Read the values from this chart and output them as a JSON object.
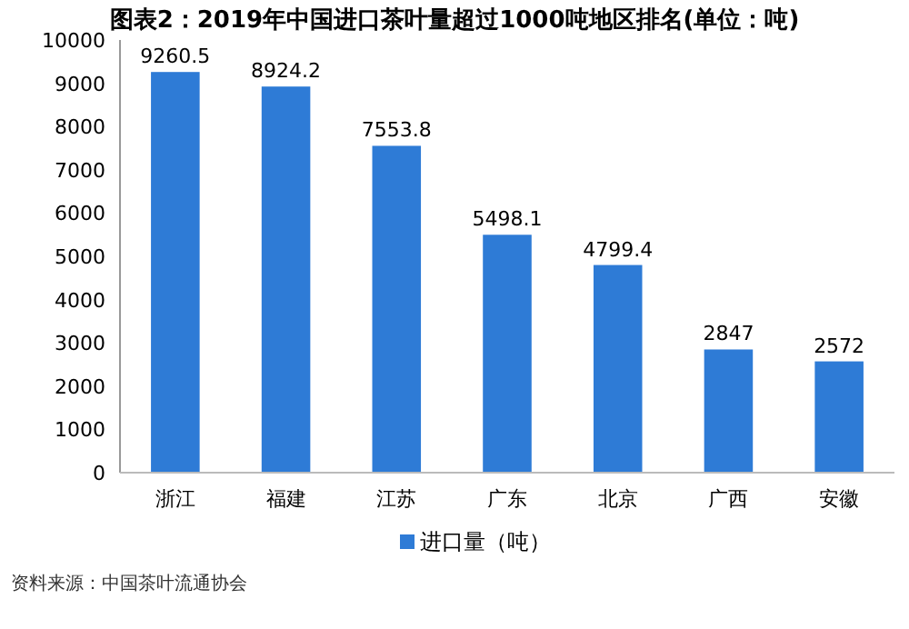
{
  "chart_data": {
    "type": "bar",
    "title": "图表2：2019年中国进口茶叶量超过1000吨地区排名(单位：吨)",
    "categories": [
      "浙江",
      "福建",
      "江苏",
      "广东",
      "北京",
      "广西",
      "安徽"
    ],
    "series": [
      {
        "name": "进口量（吨）",
        "color": "#2e7bd6",
        "values": [
          9260.5,
          8924.2,
          7553.8,
          5498.1,
          4799.4,
          2847,
          2572
        ]
      }
    ],
    "ylim": [
      0,
      10000
    ],
    "yticks": [
      0,
      1000,
      2000,
      3000,
      4000,
      5000,
      6000,
      7000,
      8000,
      9000,
      10000
    ],
    "data_labels": true,
    "legend": "bottom",
    "annotations": [
      "资料来源：中国茶叶流通协会"
    ]
  }
}
